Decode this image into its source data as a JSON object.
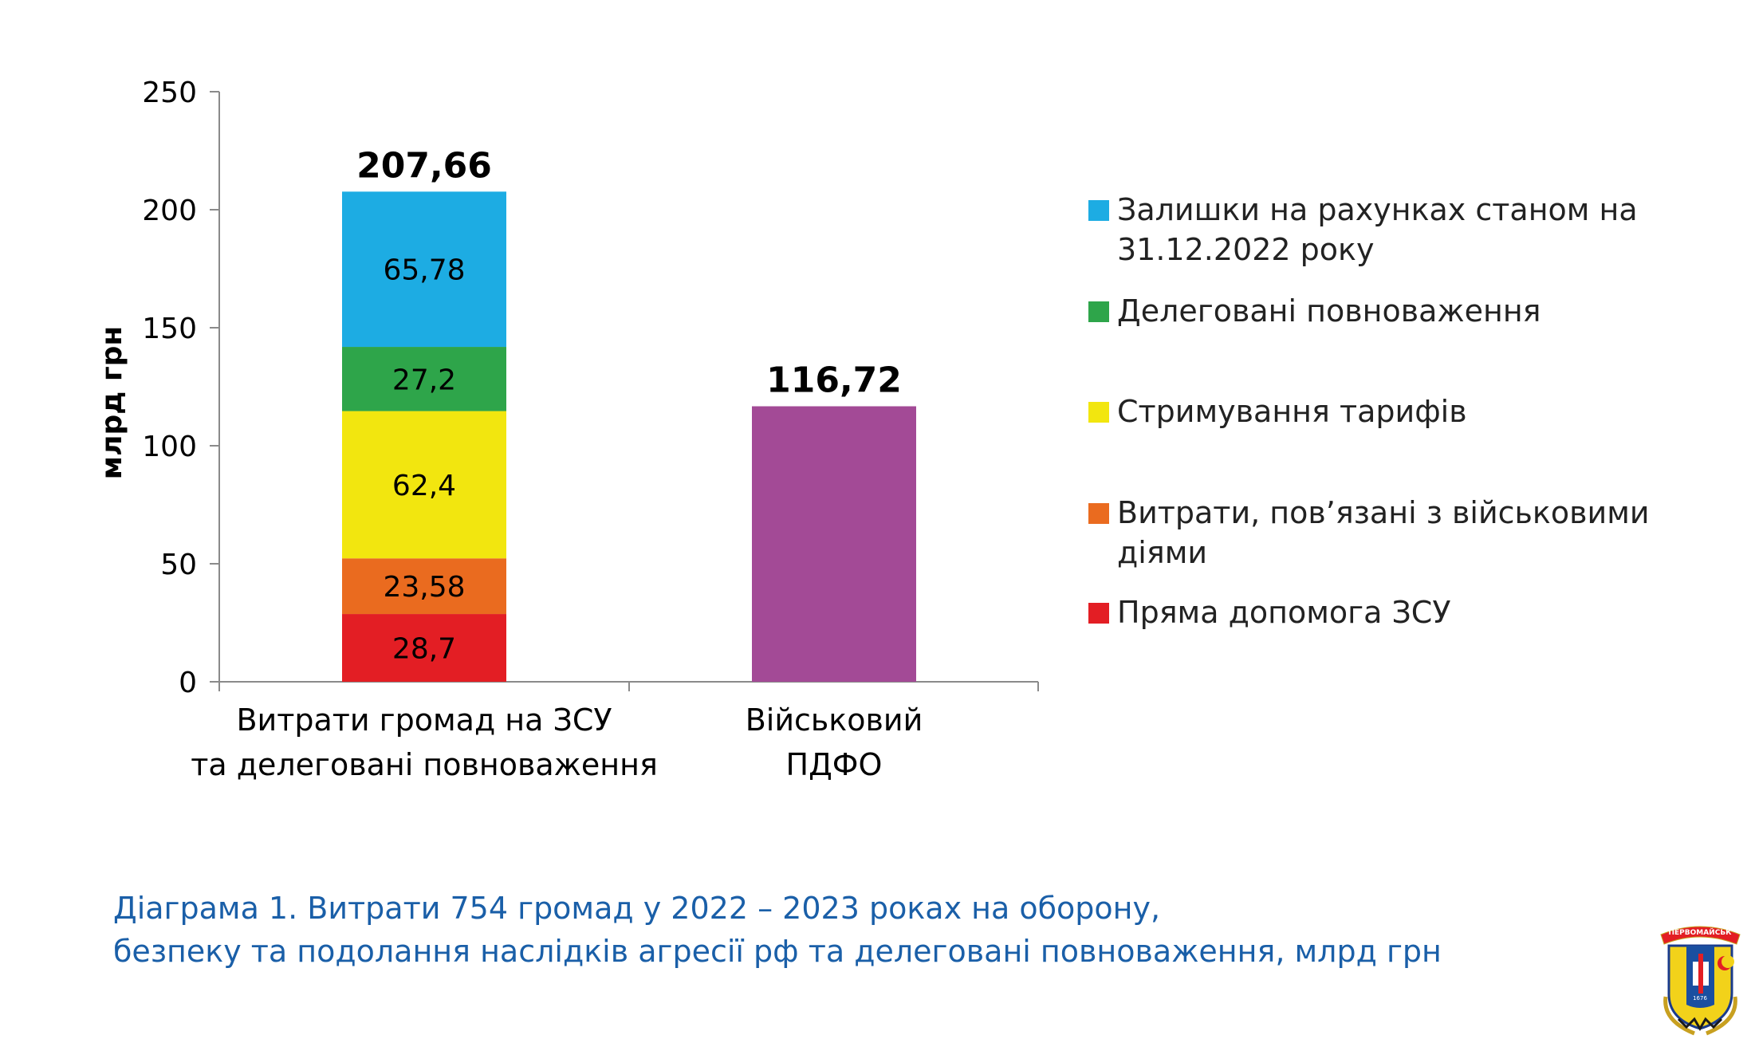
{
  "chart_data": {
    "type": "bar",
    "stacked": true,
    "ylabel": "млрд грн",
    "ylim": [
      0,
      250
    ],
    "yticks": [
      0,
      50,
      100,
      150,
      200,
      250
    ],
    "categories": [
      [
        "Витрати громад на ЗСУ",
        "та делеговані повноваження"
      ],
      [
        "Військовий",
        "ПДФО"
      ]
    ],
    "series": [
      {
        "name": "Пряма допомога ЗСУ",
        "color": "#e31e24",
        "values": [
          28.7,
          null
        ],
        "labels": [
          "28,7",
          ""
        ]
      },
      {
        "name": "Витрати, пов’язані з військовими діями",
        "color": "#ea6b1f",
        "values": [
          23.58,
          null
        ],
        "labels": [
          "23,58",
          ""
        ]
      },
      {
        "name": "Стримування тарифів",
        "color": "#f2e60f",
        "values": [
          62.4,
          null
        ],
        "labels": [
          "62,4",
          ""
        ]
      },
      {
        "name": "Делеговані повноваження",
        "color": "#2ea54a",
        "values": [
          27.2,
          null
        ],
        "labels": [
          "27,2",
          ""
        ]
      },
      {
        "name": "Залишки на рахунках станом на 31.12.2022 року",
        "color": "#1dace3",
        "values": [
          65.78,
          null
        ],
        "labels": [
          "65,78",
          ""
        ]
      },
      {
        "name": "",
        "color": "#a34a96",
        "values": [
          null,
          116.72
        ],
        "labels": [
          "",
          ""
        ]
      }
    ],
    "totals": [
      207.66,
      116.72
    ],
    "total_labels": [
      "207,66",
      "116,72"
    ],
    "legend": [
      {
        "label_lines": [
          "Залишки на рахунках станом на",
          "31.12.2022 року"
        ],
        "color": "#1dace3"
      },
      {
        "label_lines": [
          "Делеговані повноваження"
        ],
        "color": "#2ea54a"
      },
      {
        "label_lines": [
          "Стримування тарифів"
        ],
        "color": "#f2e60f"
      },
      {
        "label_lines": [
          "Витрати, пов’язані з військовими",
          "діями"
        ],
        "color": "#ea6b1f"
      },
      {
        "label_lines": [
          "Пряма допомога ЗСУ"
        ],
        "color": "#e31e24"
      }
    ],
    "legend_placement": "right",
    "grid": false
  },
  "caption": {
    "line1": "Діаграма 1.  Витрати 754 громад у 2022 – 2023 роках на оборону,",
    "line2": "безпеку та подолання наслідків агресії рф та делеговані повноваження, млрд грн"
  },
  "emblem": {
    "ribbon_text": "ПЕРВОМАЙСЬК",
    "year_text": "1676",
    "icon": "city-coat-of-arms-icon"
  }
}
